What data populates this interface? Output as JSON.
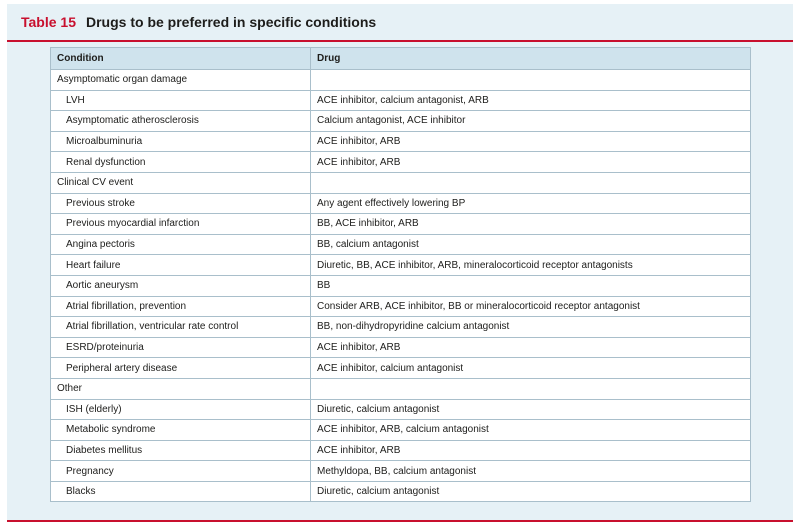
{
  "title": {
    "number": "Table 15",
    "text": "Drugs to be preferred in specific conditions"
  },
  "colors": {
    "accent": "#c8102e",
    "panel": "#e6f1f6",
    "header": "#cfe3ed",
    "border": "#a9bfcb"
  },
  "table": {
    "headers": [
      "Condition",
      "Drug"
    ],
    "rows": [
      {
        "condition": "Asymptomatic organ damage",
        "drug": "",
        "group": true
      },
      {
        "condition": "LVH",
        "drug": "ACE inhibitor, calcium antagonist, ARB",
        "group": false
      },
      {
        "condition": "Asymptomatic atherosclerosis",
        "drug": "Calcium antagonist, ACE inhibitor",
        "group": false
      },
      {
        "condition": "Microalbuminuria",
        "drug": "ACE inhibitor, ARB",
        "group": false
      },
      {
        "condition": "Renal dysfunction",
        "drug": "ACE inhibitor, ARB",
        "group": false
      },
      {
        "condition": "Clinical CV event",
        "drug": "",
        "group": true
      },
      {
        "condition": "Previous stroke",
        "drug": "Any agent effectively lowering BP",
        "group": false
      },
      {
        "condition": "Previous myocardial infarction",
        "drug": "BB, ACE inhibitor, ARB",
        "group": false
      },
      {
        "condition": "Angina pectoris",
        "drug": "BB, calcium antagonist",
        "group": false
      },
      {
        "condition": "Heart failure",
        "drug": "Diuretic, BB, ACE inhibitor, ARB, mineralocorticoid receptor antagonists",
        "group": false
      },
      {
        "condition": "Aortic aneurysm",
        "drug": "BB",
        "group": false
      },
      {
        "condition": "Atrial fibrillation, prevention",
        "drug": "Consider ARB, ACE inhibitor, BB or mineralocorticoid receptor antagonist",
        "group": false
      },
      {
        "condition": "Atrial fibrillation, ventricular rate control",
        "drug": "BB, non-dihydropyridine calcium antagonist",
        "group": false
      },
      {
        "condition": "ESRD/proteinuria",
        "drug": "ACE inhibitor, ARB",
        "group": false
      },
      {
        "condition": "Peripheral artery disease",
        "drug": "ACE inhibitor, calcium antagonist",
        "group": false
      },
      {
        "condition": "Other",
        "drug": "",
        "group": true
      },
      {
        "condition": "ISH (elderly)",
        "drug": "Diuretic, calcium antagonist",
        "group": false
      },
      {
        "condition": "Metabolic syndrome",
        "drug": "ACE inhibitor, ARB, calcium antagonist",
        "group": false
      },
      {
        "condition": "Diabetes mellitus",
        "drug": "ACE inhibitor, ARB",
        "group": false
      },
      {
        "condition": "Pregnancy",
        "drug": "Methyldopa, BB, calcium antagonist",
        "group": false
      },
      {
        "condition": "Blacks",
        "drug": "Diuretic, calcium antagonist",
        "group": false
      }
    ]
  }
}
